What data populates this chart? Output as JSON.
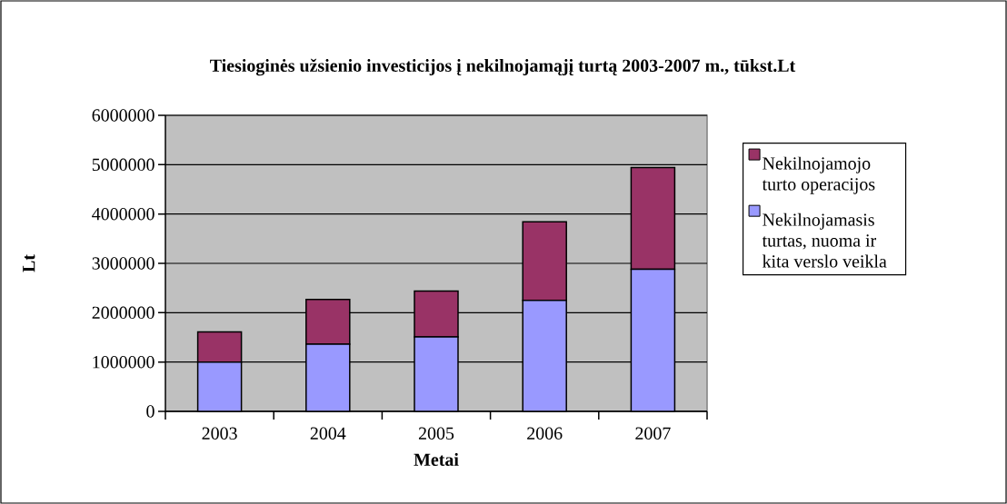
{
  "chart_data": {
    "type": "bar",
    "title": "Tiesioginės užsienio investicijos į nekilnojamąjį turtą 2003-2007 m., tūkst.Lt",
    "xlabel": "Metai",
    "ylabel": "Lt",
    "categories": [
      "2003",
      "2004",
      "2005",
      "2006",
      "2007"
    ],
    "stacked": true,
    "series": [
      {
        "name": "Nekilnojamasis turtas, nuoma ir kita verslo veikla",
        "color": "#9999ff",
        "values": [
          1000000,
          1360000,
          1510000,
          2250000,
          2880000
        ]
      },
      {
        "name": "Nekilnojamojo turto operacijos",
        "color": "#993366",
        "values": [
          610000,
          910000,
          930000,
          1590000,
          2060000
        ]
      }
    ],
    "ylim": [
      0,
      6000000
    ],
    "yticks": [
      0,
      1000000,
      2000000,
      3000000,
      4000000,
      5000000,
      6000000
    ],
    "grid": "y",
    "legend": "right"
  }
}
